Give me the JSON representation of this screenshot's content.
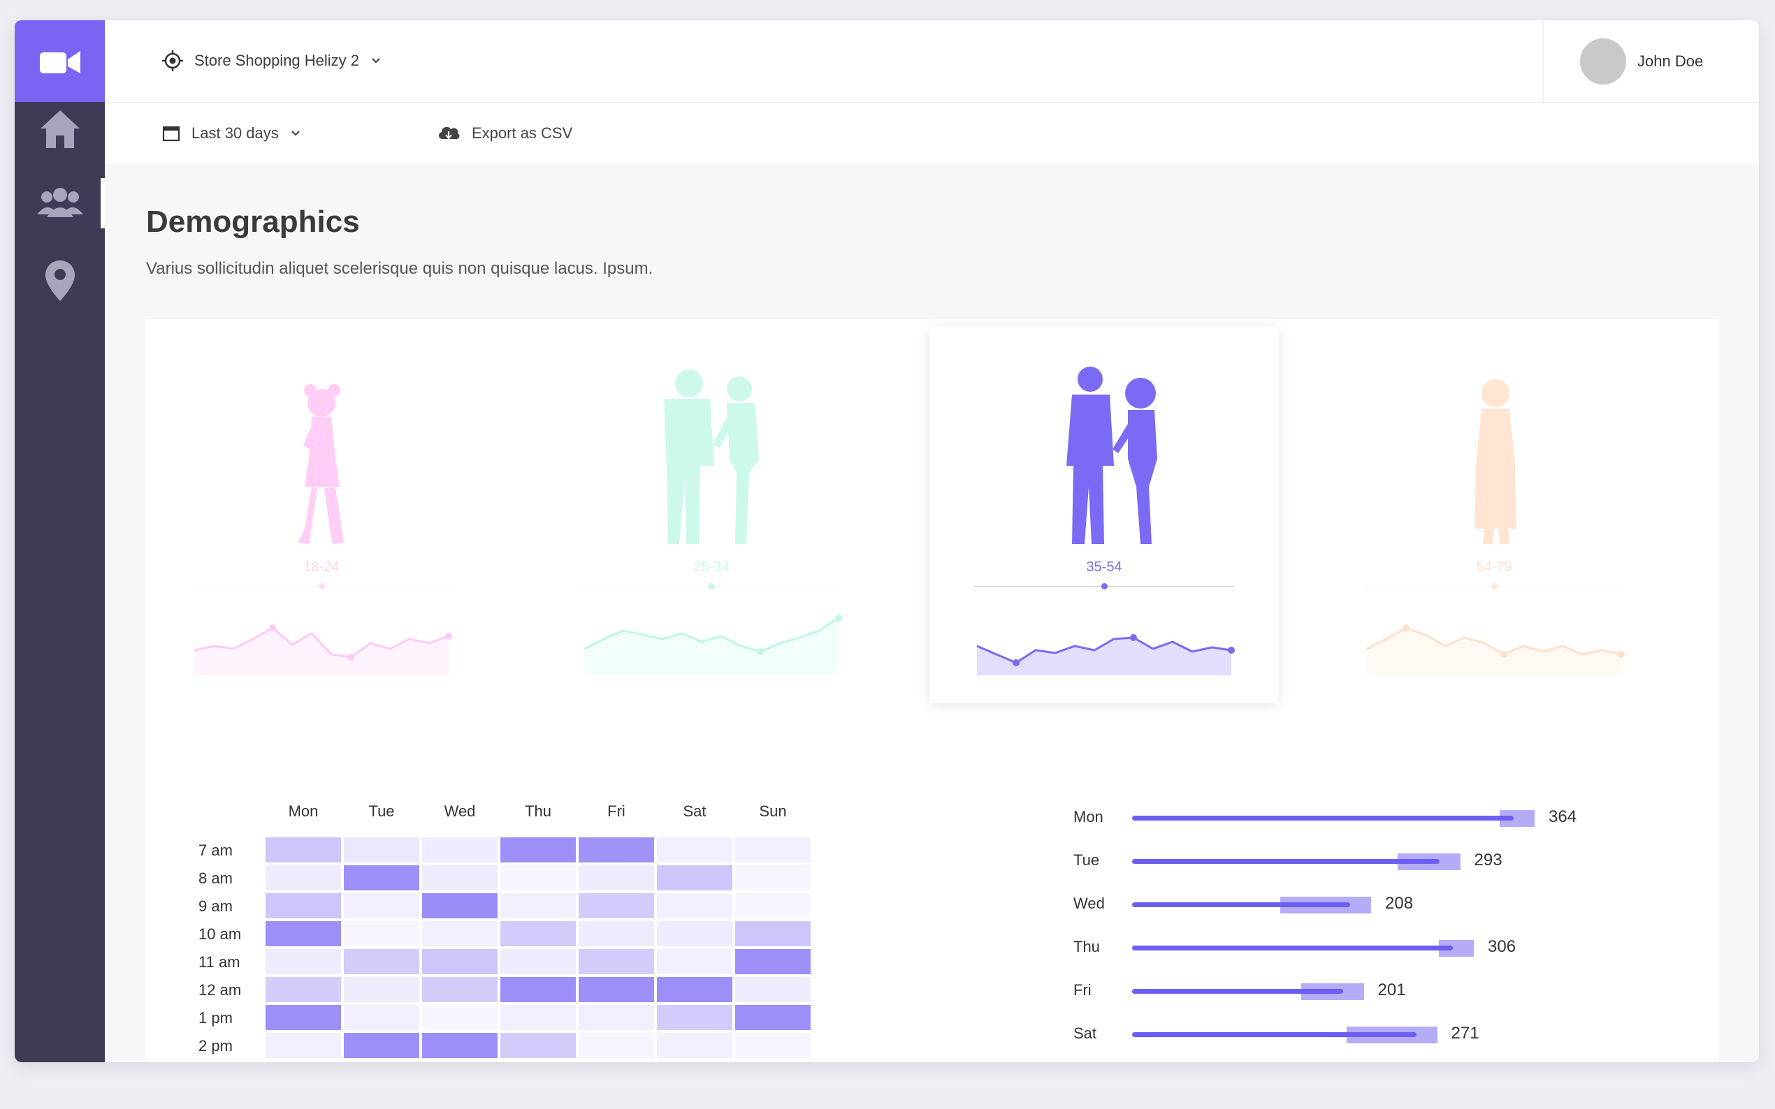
{
  "app": {
    "store_name": "Store Shopping Helizy 2",
    "user_name": "John Doe"
  },
  "toolbar": {
    "date_range": "Last 30 days",
    "export_label": "Export as CSV"
  },
  "page": {
    "title": "Demographics",
    "description": "Varius sollicitudin aliquet scelerisque quis non quisque lacus. Ipsum."
  },
  "nav": [
    "home",
    "audience",
    "locations"
  ],
  "demographics": [
    {
      "label": "18-24",
      "color": "#ffa6f0",
      "active": false,
      "icon": "girl-silhouette-icon",
      "trend": [
        28,
        34,
        30,
        44,
        60,
        36,
        52,
        22,
        18,
        38,
        30,
        44,
        38,
        48
      ]
    },
    {
      "label": "25-34",
      "color": "#a3f5dd",
      "active": false,
      "icon": "couple-silhouette-icon",
      "trend": [
        30,
        44,
        56,
        50,
        44,
        52,
        40,
        48,
        34,
        26,
        38,
        46,
        56,
        74
      ]
    },
    {
      "label": "35-54",
      "color": "#7b6af4",
      "active": true,
      "icon": "couple-silhouette-icon",
      "trend": [
        34,
        22,
        10,
        28,
        24,
        34,
        28,
        44,
        46,
        30,
        40,
        26,
        32,
        28
      ]
    },
    {
      "label": "54-79",
      "color": "#ffd4b5",
      "active": false,
      "icon": "woman-silhouette-icon",
      "trend": [
        30,
        44,
        60,
        50,
        34,
        46,
        38,
        22,
        34,
        26,
        34,
        22,
        28,
        22
      ]
    }
  ],
  "heatmap": {
    "days": [
      "Mon",
      "Tue",
      "Wed",
      "Thu",
      "Fri",
      "Sat",
      "Sun"
    ],
    "hours": [
      "7 am",
      "8 am",
      "9 am",
      "10 am",
      "11 am",
      "12 am",
      "1 pm",
      "2 pm"
    ],
    "values": [
      [
        0.45,
        0.18,
        0.15,
        0.88,
        0.85,
        0.12,
        0.12
      ],
      [
        0.15,
        0.88,
        0.15,
        0.05,
        0.15,
        0.45,
        0.05
      ],
      [
        0.45,
        0.12,
        0.9,
        0.12,
        0.4,
        0.12,
        0.05
      ],
      [
        0.88,
        0.05,
        0.12,
        0.4,
        0.15,
        0.15,
        0.45
      ],
      [
        0.15,
        0.4,
        0.45,
        0.15,
        0.4,
        0.12,
        0.88
      ],
      [
        0.4,
        0.15,
        0.4,
        0.88,
        0.88,
        0.88,
        0.15
      ],
      [
        0.88,
        0.12,
        0.05,
        0.12,
        0.12,
        0.4,
        0.88
      ],
      [
        0.12,
        0.88,
        0.88,
        0.4,
        0.05,
        0.12,
        0.05
      ]
    ],
    "color": "#7b6af4"
  },
  "chart_data": {
    "type": "bar",
    "categories": [
      "Mon",
      "Tue",
      "Wed",
      "Thu",
      "Fri",
      "Sat"
    ],
    "values": [
      364,
      293,
      208,
      306,
      201,
      271
    ]
  }
}
